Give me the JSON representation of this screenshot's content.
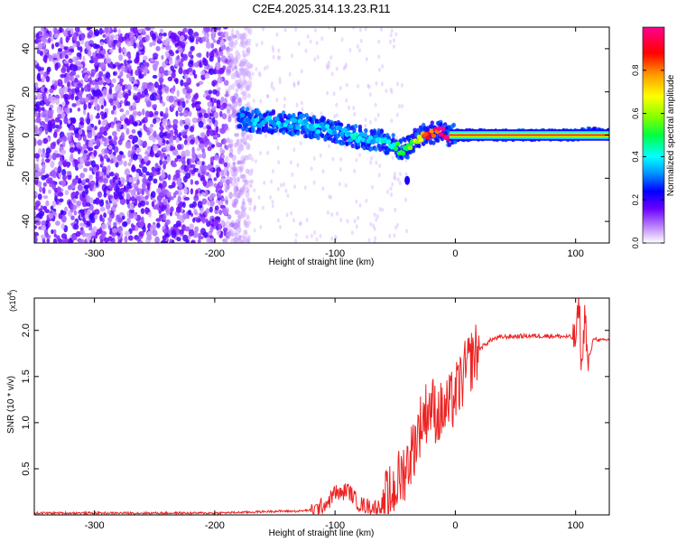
{
  "title": "C2E4.2025.314.13.23.R11",
  "chart_data": [
    {
      "type": "heatmap",
      "xlabel": "Height of straight line (km)",
      "ylabel": "Frequency (Hz)",
      "xlim": [
        -350,
        128
      ],
      "ylim": [
        -50,
        50
      ],
      "xticks": [
        -300,
        -200,
        -100,
        0,
        100
      ],
      "yticks": [
        -40,
        -20,
        0,
        20,
        40
      ],
      "colorbar": {
        "label": "Normalized spectral amplitude",
        "range": [
          0.0,
          1.0
        ],
        "ticks": [
          "0.0",
          "0.2",
          "0.4",
          "0.6",
          "0.8"
        ],
        "colors": [
          "#ffffff",
          "#b77dff",
          "#6a00ff",
          "#0000ff",
          "#00a0ff",
          "#00ffff",
          "#00ff40",
          "#7fff00",
          "#ffff00",
          "#ff9900",
          "#ff0000",
          "#ff0090"
        ]
      },
      "trace": {
        "height_km": [
          -180,
          -170,
          -160,
          -150,
          -140,
          -130,
          -120,
          -110,
          -100,
          -90,
          -80,
          -70,
          -60,
          -50,
          -45,
          -40,
          -35,
          -30,
          -25,
          -20,
          -15,
          -10,
          -5,
          0,
          10,
          50,
          100,
          110,
          128
        ],
        "frequency_hz": [
          8,
          7,
          6,
          6,
          5,
          5,
          4,
          3,
          2,
          0,
          -1,
          -2,
          -3,
          -5,
          -7,
          -6,
          -3,
          -1,
          0,
          1,
          1,
          1,
          0,
          0,
          0,
          0,
          0,
          1,
          0
        ],
        "amplitude": [
          0.3,
          0.35,
          0.35,
          0.35,
          0.35,
          0.35,
          0.38,
          0.38,
          0.35,
          0.4,
          0.38,
          0.35,
          0.4,
          0.45,
          0.5,
          0.5,
          0.6,
          0.7,
          0.8,
          0.85,
          0.9,
          0.95,
          0.98,
          1.0,
          1.0,
          1.0,
          1.0,
          1.0,
          1.0
        ]
      },
      "noise_region_km": [
        -350,
        -180
      ]
    },
    {
      "type": "line",
      "xlabel": "Height of straight line (km)",
      "ylabel": "SNR (10 * v/v)",
      "y_multiplier": "(x10",
      "y_multiplier_exp": "4",
      "xlim": [
        -350,
        128
      ],
      "ylim": [
        0,
        2.35
      ],
      "xticks": [
        -300,
        -200,
        -100,
        0,
        100
      ],
      "yticks": [
        0.5,
        1.0,
        1.5,
        2.0
      ],
      "series": [
        {
          "name": "SNR",
          "color": "#ee2222",
          "x": [
            -350,
            -300,
            -250,
            -200,
            -170,
            -150,
            -130,
            -115,
            -105,
            -100,
            -95,
            -90,
            -85,
            -80,
            -75,
            -70,
            -65,
            -60,
            -55,
            -50,
            -45,
            -40,
            -35,
            -30,
            -25,
            -20,
            -15,
            -10,
            -5,
            0,
            5,
            10,
            15,
            20,
            25,
            30,
            35,
            40,
            60,
            80,
            95,
            100,
            103,
            105,
            108,
            110,
            115,
            120,
            128
          ],
          "y": [
            0.02,
            0.02,
            0.02,
            0.02,
            0.03,
            0.04,
            0.04,
            0.06,
            0.15,
            0.25,
            0.22,
            0.28,
            0.2,
            0.12,
            0.1,
            0.09,
            0.08,
            0.12,
            0.2,
            0.3,
            0.42,
            0.55,
            0.72,
            0.95,
            1.1,
            1.2,
            1.08,
            1.12,
            1.18,
            1.3,
            1.45,
            1.6,
            1.72,
            1.8,
            1.85,
            1.9,
            1.92,
            1.93,
            1.94,
            1.94,
            1.93,
            1.9,
            2.3,
            1.55,
            2.25,
            1.6,
            1.92,
            1.89,
            1.9
          ]
        }
      ]
    }
  ]
}
